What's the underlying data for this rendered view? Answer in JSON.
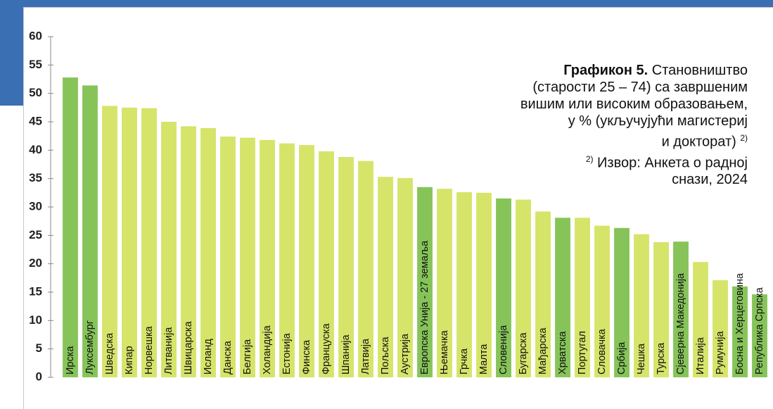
{
  "chart_data": {
    "type": "bar",
    "title_prefix": "Графикон 5.",
    "title_lines": [
      "Становништво",
      "(старости 25 – 74) са завршеним",
      "вишим или високим образовањем,",
      "у % (укључујући магистериј",
      "и докторат)"
    ],
    "note_marker": "2)",
    "source_lines": [
      "Извор: Анкета о радној",
      "снази, 2024"
    ],
    "categories": [
      "Ирска",
      "Луксембург",
      "Шведска",
      "Кипар",
      "Норвешка",
      "Литванија",
      "Швицарска",
      "Исланд",
      "Данска",
      "Белгија",
      "Холандија",
      "Естонија",
      "Финска",
      "Француска",
      "Шпанија",
      "Латвија",
      "Пољска",
      "Аустрија",
      "Европска Унија - 27 земаља",
      "Њемачка",
      "Грчка",
      "Малта",
      "Словенија",
      "Бугарска",
      "Мађарска",
      "Хрватска",
      "Португал",
      "Словачка",
      "Србија",
      "Чешка",
      "Турска",
      "Сјеверна Македонија",
      "Италија",
      "Румунија",
      "Босна и Херцеговина",
      "Република Српска"
    ],
    "values": [
      52.8,
      51.4,
      47.8,
      47.5,
      47.4,
      45.0,
      44.2,
      43.9,
      42.4,
      42.2,
      41.8,
      41.2,
      40.9,
      39.8,
      38.8,
      38.1,
      35.3,
      35.1,
      33.5,
      33.2,
      32.6,
      32.5,
      31.5,
      31.3,
      29.2,
      28.1,
      28.1,
      26.7,
      26.3,
      25.2,
      23.8,
      23.9,
      20.3,
      17.1,
      16.0,
      14.6
    ],
    "colors": [
      "#86c45a",
      "#86c45a",
      "#d6e46a",
      "#d6e46a",
      "#d6e46a",
      "#d6e46a",
      "#d6e46a",
      "#d6e46a",
      "#d6e46a",
      "#d6e46a",
      "#d6e46a",
      "#d6e46a",
      "#d6e46a",
      "#d6e46a",
      "#d6e46a",
      "#d6e46a",
      "#d6e46a",
      "#d6e46a",
      "#86c45a",
      "#d6e46a",
      "#d6e46a",
      "#d6e46a",
      "#86c45a",
      "#d6e46a",
      "#d6e46a",
      "#86c45a",
      "#d6e46a",
      "#d6e46a",
      "#86c45a",
      "#d6e46a",
      "#d6e46a",
      "#86c45a",
      "#d6e46a",
      "#d6e46a",
      "#86c45a",
      "#86c45a"
    ],
    "ylim": [
      0,
      60
    ],
    "yticks": [
      0,
      5,
      10,
      15,
      20,
      25,
      30,
      35,
      40,
      45,
      50,
      55,
      60
    ],
    "grid": false
  }
}
